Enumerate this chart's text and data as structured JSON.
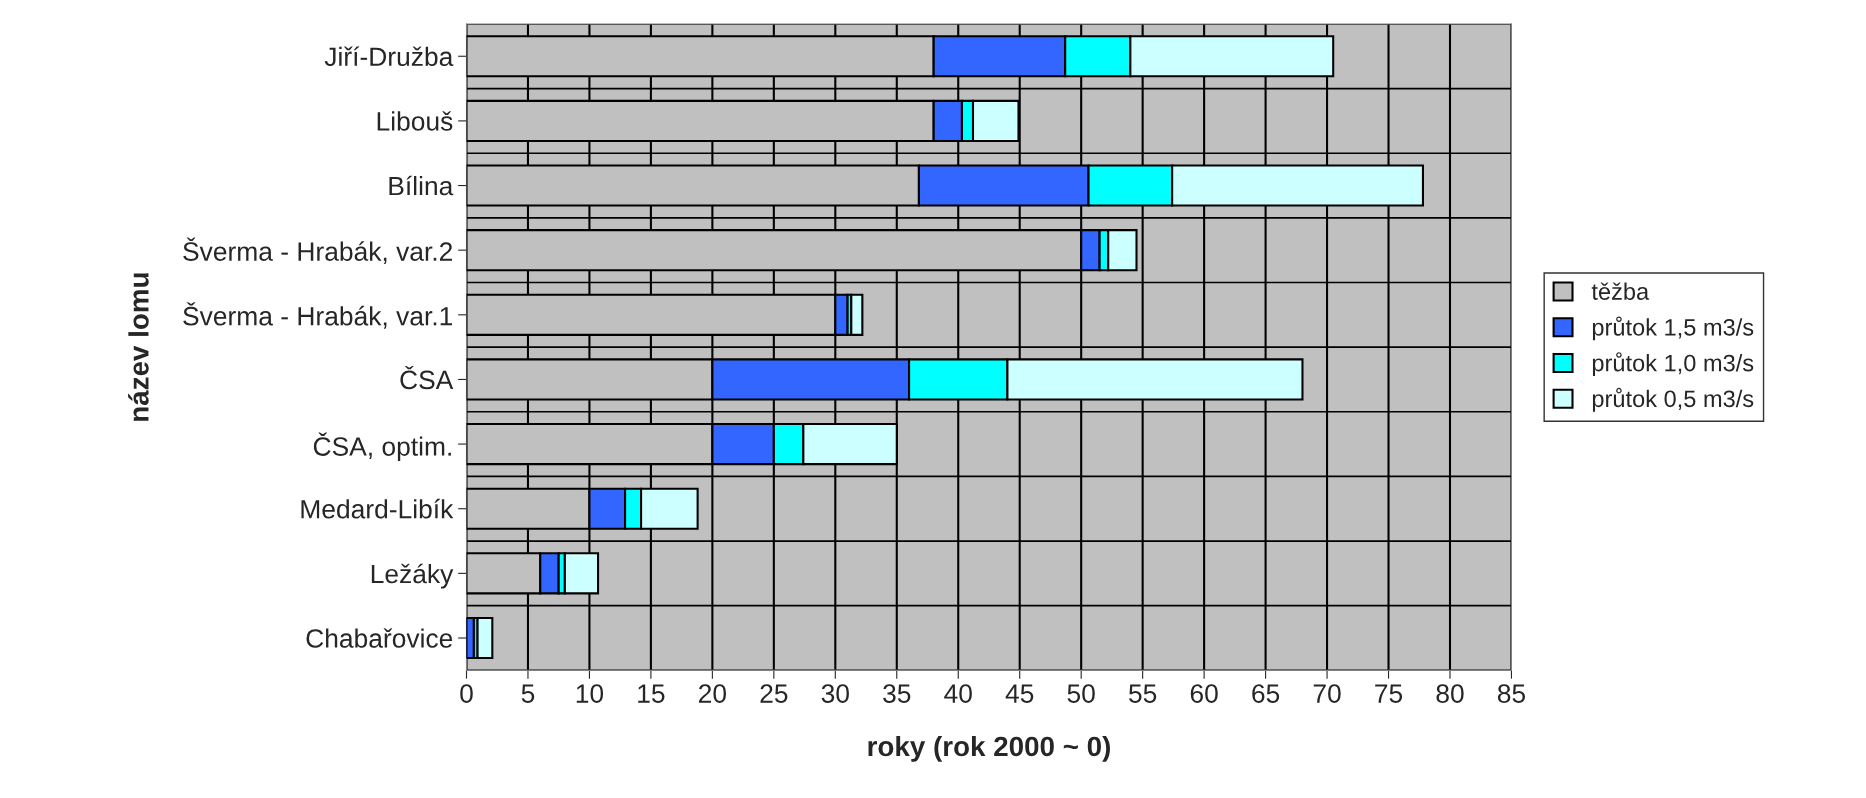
{
  "chart_data": {
    "type": "bar",
    "orientation": "horizontal",
    "stacked": true,
    "xlabel": "roky (rok 2000 ~ 0)",
    "ylabel": "název lomu",
    "categories": [
      "Jiří-Družba",
      "Libouš",
      "Bílina",
      "Šverma - Hrabák, var.2",
      "Šverma - Hrabák, var.1",
      "ČSA",
      "ČSA, optim.",
      "Medard-Libík",
      "Ležáky",
      "Chabařovice"
    ],
    "series": [
      {
        "name": "těžba",
        "color": "#c0c0c0",
        "values": [
          38,
          38,
          36.8,
          50,
          30,
          20,
          20,
          10,
          6,
          0
        ]
      },
      {
        "name": "průtok 1,5 m3/s",
        "color": "#3366ff",
        "values": [
          10.7,
          2.3,
          13.8,
          1.5,
          1.0,
          16,
          5,
          2.9,
          1.5,
          0.6
        ]
      },
      {
        "name": "průtok 1,0 m3/s",
        "color": "#00ffff",
        "values": [
          5.3,
          0.9,
          6.8,
          0.7,
          0.3,
          8,
          2.4,
          1.3,
          0.5,
          0.3
        ]
      },
      {
        "name": "průtok 0,5 m3/s",
        "color": "#ccffff",
        "values": [
          16.5,
          3.7,
          20.4,
          2.3,
          0.9,
          24,
          7.6,
          4.6,
          2.7,
          1.2
        ]
      }
    ],
    "xlim": [
      0,
      85
    ],
    "xticks": [
      0,
      5,
      10,
      15,
      20,
      25,
      30,
      35,
      40,
      45,
      50,
      55,
      60,
      65,
      70,
      75,
      80,
      85
    ],
    "grid": "x",
    "legend": "right"
  }
}
